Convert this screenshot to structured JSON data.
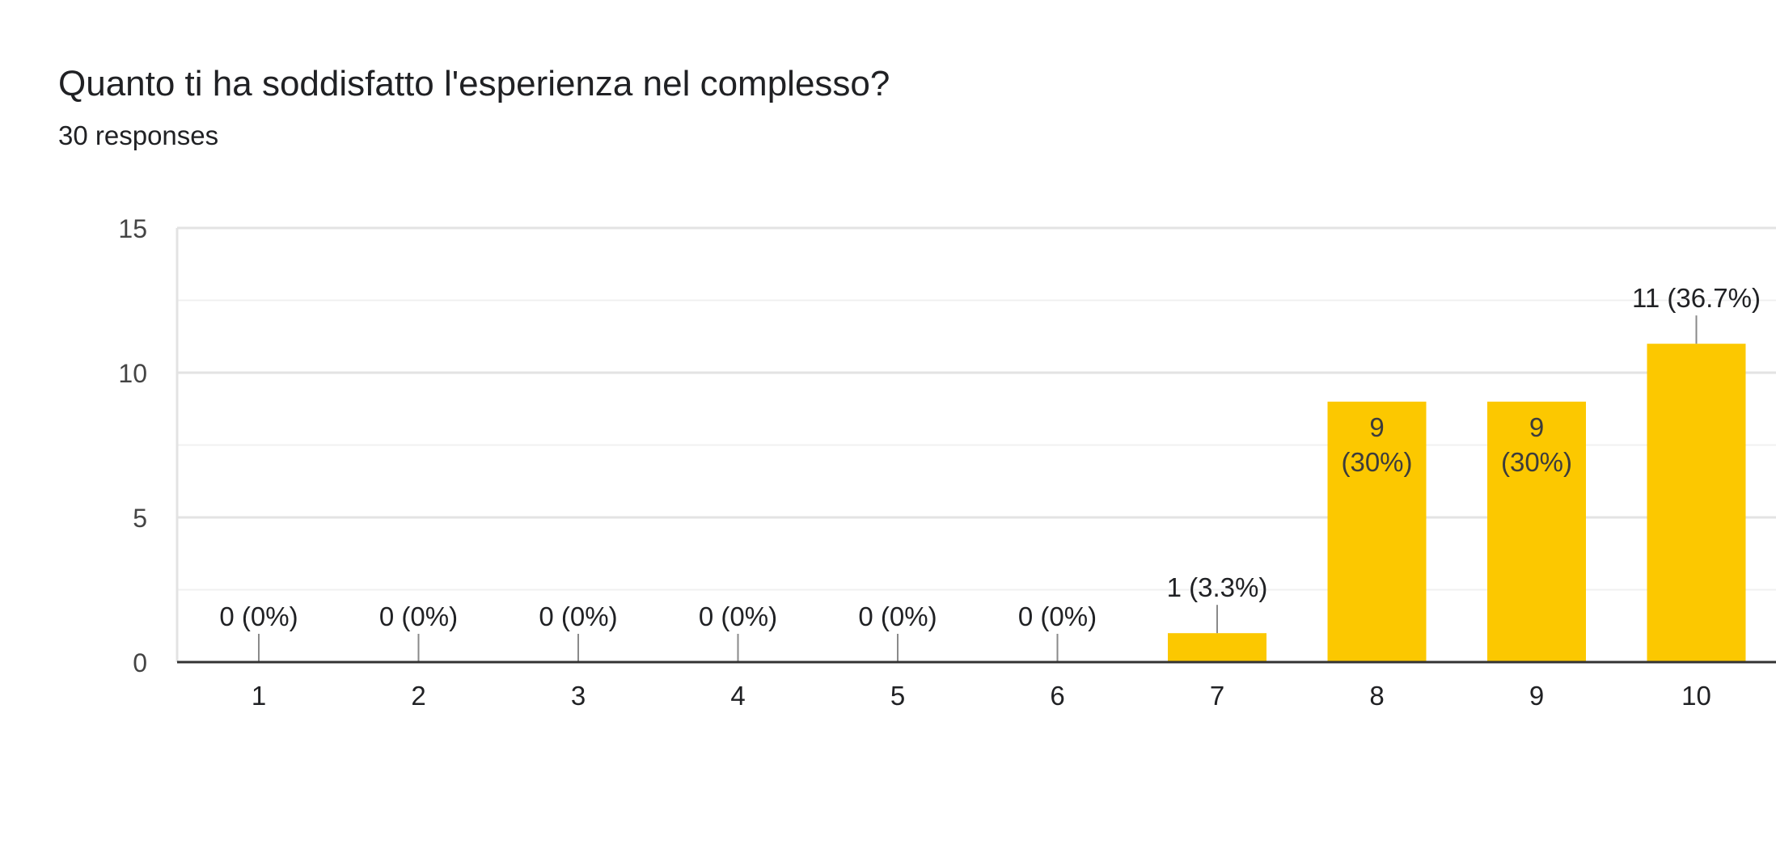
{
  "header": {
    "title": "Quanto ti ha soddisfatto l'esperienza nel complesso?",
    "subtitle": "30 responses"
  },
  "chart_data": {
    "type": "bar",
    "categories": [
      "1",
      "2",
      "3",
      "4",
      "5",
      "6",
      "7",
      "8",
      "9",
      "10"
    ],
    "values": [
      0,
      0,
      0,
      0,
      0,
      0,
      1,
      9,
      9,
      11
    ],
    "data_labels": [
      "0 (0%)",
      "0 (0%)",
      "0 (0%)",
      "0 (0%)",
      "0 (0%)",
      "0 (0%)",
      "1 (3.3%)",
      "9 (30%)",
      "9 (30%)",
      "11 (36.7%)"
    ],
    "ylim": [
      0,
      15
    ],
    "yticks": [
      "0",
      "5",
      "10",
      "15"
    ],
    "grid": true,
    "bar_color": "#fcc800"
  }
}
